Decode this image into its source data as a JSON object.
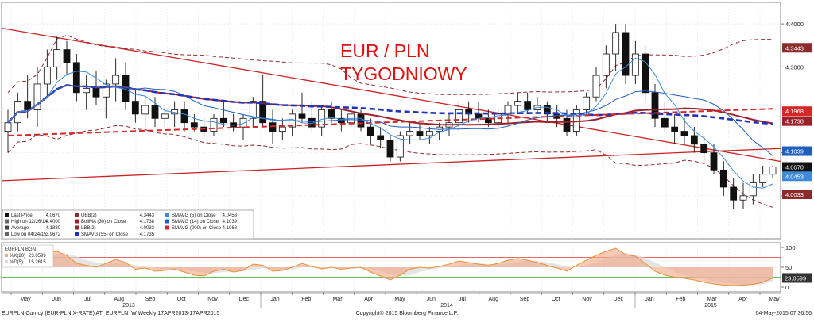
{
  "overlay": {
    "line1": "EUR / PLN",
    "line2": "TYGODNIOWY"
  },
  "price_axis": {
    "ticks": [
      "4.4000",
      "4.3000",
      "4.1000",
      "4.0000"
    ]
  },
  "right_tags": [
    {
      "label": "4.3443",
      "value": 4.3443,
      "color": "#8c2b2b"
    },
    {
      "label": "4.1968",
      "value": 4.1968,
      "color": "#d62728"
    },
    {
      "label": "4.1738",
      "value": 4.1738,
      "color": "#a0202a"
    },
    {
      "label": "4.1039",
      "value": 4.1039,
      "color": "#1f5fbf"
    },
    {
      "label": "4.0670",
      "value": 4.067,
      "color": "#111111"
    },
    {
      "label": "4.0453",
      "value": 4.0453,
      "color": "#3d8bd9"
    },
    {
      "label": "4.0033",
      "value": 4.0033,
      "color": "#8c2b2b"
    }
  ],
  "legend": {
    "col1": [
      {
        "label": "Last Price",
        "value": "4.0670"
      },
      {
        "label": "High on 12/26/14",
        "value": "4.4000"
      },
      {
        "label": "Average",
        "value": "4.1880"
      },
      {
        "label": "Low on 04/24/15",
        "value": "3.9672"
      }
    ],
    "col2": [
      {
        "label": "UBB(2)",
        "value": "4.3443"
      },
      {
        "label": "BollMA (30) on Close",
        "value": "4.1738"
      },
      {
        "label": "LBB(2)",
        "value": "4.0033"
      },
      {
        "label": "SMAVG (55) on Close",
        "value": "4.1735"
      }
    ],
    "col3": [
      {
        "label": "SMAVG (5) on Close",
        "value": "4.0453"
      },
      {
        "label": "SMAVG (14) on Close",
        "value": "4.1039"
      },
      {
        "label": "SMAVG (200) on Close",
        "value": "4.1968"
      }
    ]
  },
  "osc_legend": {
    "title": "EURPLN BGN",
    "k_label": "%K(20)",
    "k_value": "23.0599",
    "d_label": "%D(5)",
    "d_value": "15.2615"
  },
  "osc_axis": {
    "ticks": [
      "100",
      "50",
      "0"
    ]
  },
  "osc_tag": "23.0599",
  "x_axis": {
    "months": [
      "May",
      "Jun",
      "Jul",
      "Aug",
      "Sep",
      "Oct",
      "Nov",
      "Dec",
      "Jan",
      "Feb",
      "Mar",
      "Apr",
      "May",
      "Jun",
      "Jul",
      "Aug",
      "Sep",
      "Oct",
      "Nov",
      "Dec",
      "Jan",
      "Feb",
      "Mar",
      "Apr",
      "May"
    ],
    "years": [
      "2013",
      "2014",
      "2015"
    ]
  },
  "footer": {
    "left": "EURPLN Curncy (EUR-PLN X-RATE) AT_EURPLN_W  Weekly 17APR2013-17APR2015",
    "center": "Copyright© 2015 Bloomberg Finance L.P.",
    "right": "04-May-2015 07:36:56"
  },
  "colors": {
    "up_candle": "#ffffff",
    "down_candle": "#111111",
    "bollinger": "#8c2b2b",
    "bollma": "#a0202a",
    "sma5": "#3d8bd9",
    "sma14": "#1f5fbf",
    "sma55": "#2233bb",
    "sma200": "#d62728",
    "trendline": "#cc2222",
    "k_fill": "#f4a582",
    "d_fill": "#d9d9d9"
  },
  "chart_data": {
    "type": "candlestick",
    "ylim": [
      3.9,
      4.45
    ],
    "osc_ylim": [
      0,
      100
    ],
    "candles": [
      [
        4.15,
        4.2,
        4.1,
        4.17
      ],
      [
        4.17,
        4.24,
        4.15,
        4.22
      ],
      [
        4.22,
        4.28,
        4.18,
        4.2
      ],
      [
        4.2,
        4.3,
        4.16,
        4.26
      ],
      [
        4.26,
        4.34,
        4.23,
        4.3
      ],
      [
        4.3,
        4.37,
        4.27,
        4.34
      ],
      [
        4.34,
        4.36,
        4.28,
        4.31
      ],
      [
        4.31,
        4.33,
        4.22,
        4.24
      ],
      [
        4.24,
        4.28,
        4.2,
        4.25
      ],
      [
        4.25,
        4.29,
        4.21,
        4.23
      ],
      [
        4.23,
        4.27,
        4.18,
        4.26
      ],
      [
        4.26,
        4.32,
        4.22,
        4.28
      ],
      [
        4.28,
        4.31,
        4.2,
        4.22
      ],
      [
        4.22,
        4.25,
        4.17,
        4.19
      ],
      [
        4.19,
        4.23,
        4.16,
        4.21
      ],
      [
        4.21,
        4.23,
        4.16,
        4.18
      ],
      [
        4.18,
        4.21,
        4.16,
        4.19
      ],
      [
        4.19,
        4.22,
        4.16,
        4.2
      ],
      [
        4.2,
        4.22,
        4.15,
        4.17
      ],
      [
        4.17,
        4.19,
        4.15,
        4.16
      ],
      [
        4.16,
        4.18,
        4.14,
        4.15
      ],
      [
        4.15,
        4.19,
        4.14,
        4.18
      ],
      [
        4.18,
        4.22,
        4.16,
        4.17
      ],
      [
        4.17,
        4.19,
        4.15,
        4.16
      ],
      [
        4.16,
        4.19,
        4.13,
        4.18
      ],
      [
        4.18,
        4.23,
        4.16,
        4.22
      ],
      [
        4.22,
        4.28,
        4.16,
        4.17
      ],
      [
        4.17,
        4.2,
        4.12,
        4.15
      ],
      [
        4.15,
        4.18,
        4.13,
        4.16
      ],
      [
        4.16,
        4.2,
        4.14,
        4.19
      ],
      [
        4.19,
        4.24,
        4.17,
        4.18
      ],
      [
        4.18,
        4.22,
        4.15,
        4.16
      ],
      [
        4.16,
        4.21,
        4.14,
        4.2
      ],
      [
        4.2,
        4.22,
        4.17,
        4.18
      ],
      [
        4.18,
        4.2,
        4.15,
        4.17
      ],
      [
        4.17,
        4.2,
        4.16,
        4.19
      ],
      [
        4.19,
        4.2,
        4.15,
        4.16
      ],
      [
        4.16,
        4.18,
        4.12,
        4.14
      ],
      [
        4.14,
        4.16,
        4.11,
        4.13
      ],
      [
        4.13,
        4.14,
        4.08,
        4.09
      ],
      [
        4.09,
        4.15,
        4.08,
        4.14
      ],
      [
        4.14,
        4.17,
        4.12,
        4.15
      ],
      [
        4.15,
        4.17,
        4.13,
        4.14
      ],
      [
        4.14,
        4.16,
        4.12,
        4.15
      ],
      [
        4.15,
        4.17,
        4.13,
        4.16
      ],
      [
        4.16,
        4.19,
        4.14,
        4.17
      ],
      [
        4.17,
        4.22,
        4.15,
        4.2
      ],
      [
        4.2,
        4.22,
        4.17,
        4.19
      ],
      [
        4.19,
        4.22,
        4.17,
        4.18
      ],
      [
        4.18,
        4.2,
        4.16,
        4.17
      ],
      [
        4.17,
        4.2,
        4.15,
        4.19
      ],
      [
        4.19,
        4.22,
        4.17,
        4.21
      ],
      [
        4.21,
        4.24,
        4.19,
        4.22
      ],
      [
        4.22,
        4.24,
        4.19,
        4.2
      ],
      [
        4.2,
        4.23,
        4.19,
        4.21
      ],
      [
        4.21,
        4.22,
        4.17,
        4.19
      ],
      [
        4.19,
        4.21,
        4.16,
        4.18
      ],
      [
        4.18,
        4.2,
        4.14,
        4.15
      ],
      [
        4.15,
        4.21,
        4.14,
        4.2
      ],
      [
        4.2,
        4.24,
        4.19,
        4.23
      ],
      [
        4.23,
        4.3,
        4.22,
        4.28
      ],
      [
        4.28,
        4.35,
        4.25,
        4.33
      ],
      [
        4.33,
        4.4,
        4.29,
        4.38
      ],
      [
        4.38,
        4.4,
        4.26,
        4.28
      ],
      [
        4.28,
        4.36,
        4.26,
        4.33
      ],
      [
        4.33,
        4.35,
        4.22,
        4.24
      ],
      [
        4.24,
        4.26,
        4.16,
        4.18
      ],
      [
        4.18,
        4.22,
        4.15,
        4.16
      ],
      [
        4.16,
        4.19,
        4.12,
        4.15
      ],
      [
        4.15,
        4.18,
        4.12,
        4.14
      ],
      [
        4.14,
        4.16,
        4.1,
        4.12
      ],
      [
        4.12,
        4.14,
        4.08,
        4.1
      ],
      [
        4.1,
        4.12,
        4.05,
        4.06
      ],
      [
        4.06,
        4.08,
        4.0,
        4.02
      ],
      [
        4.02,
        4.04,
        3.97,
        3.99
      ],
      [
        3.99,
        4.03,
        3.97,
        4.0
      ],
      [
        4.0,
        4.05,
        3.98,
        4.03
      ],
      [
        4.03,
        4.07,
        4.02,
        4.05
      ],
      [
        4.05,
        4.07,
        4.04,
        4.067
      ]
    ],
    "osc_k": [
      55,
      68,
      75,
      82,
      88,
      90,
      80,
      60,
      55,
      50,
      60,
      70,
      62,
      45,
      48,
      40,
      42,
      45,
      38,
      30,
      28,
      40,
      45,
      38,
      42,
      58,
      55,
      40,
      42,
      50,
      60,
      52,
      46,
      50,
      45,
      48,
      50,
      38,
      28,
      18,
      30,
      45,
      50,
      48,
      52,
      58,
      66,
      62,
      58,
      55,
      60,
      68,
      72,
      68,
      62,
      55,
      48,
      40,
      55,
      68,
      80,
      90,
      98,
      82,
      78,
      60,
      40,
      30,
      25,
      22,
      18,
      12,
      8,
      5,
      4,
      5,
      7,
      12,
      23
    ],
    "osc_d": [
      50,
      60,
      68,
      74,
      80,
      84,
      84,
      78,
      68,
      62,
      58,
      60,
      60,
      55,
      52,
      48,
      45,
      44,
      42,
      40,
      36,
      35,
      38,
      40,
      40,
      44,
      48,
      46,
      44,
      45,
      50,
      52,
      50,
      50,
      48,
      47,
      48,
      45,
      40,
      32,
      28,
      30,
      38,
      44,
      48,
      51,
      55,
      58,
      60,
      58,
      57,
      60,
      64,
      67,
      66,
      63,
      58,
      52,
      50,
      55,
      62,
      72,
      82,
      86,
      82,
      74,
      62,
      50,
      38,
      30,
      25,
      20,
      15,
      11,
      8,
      6,
      6,
      7,
      15
    ]
  }
}
